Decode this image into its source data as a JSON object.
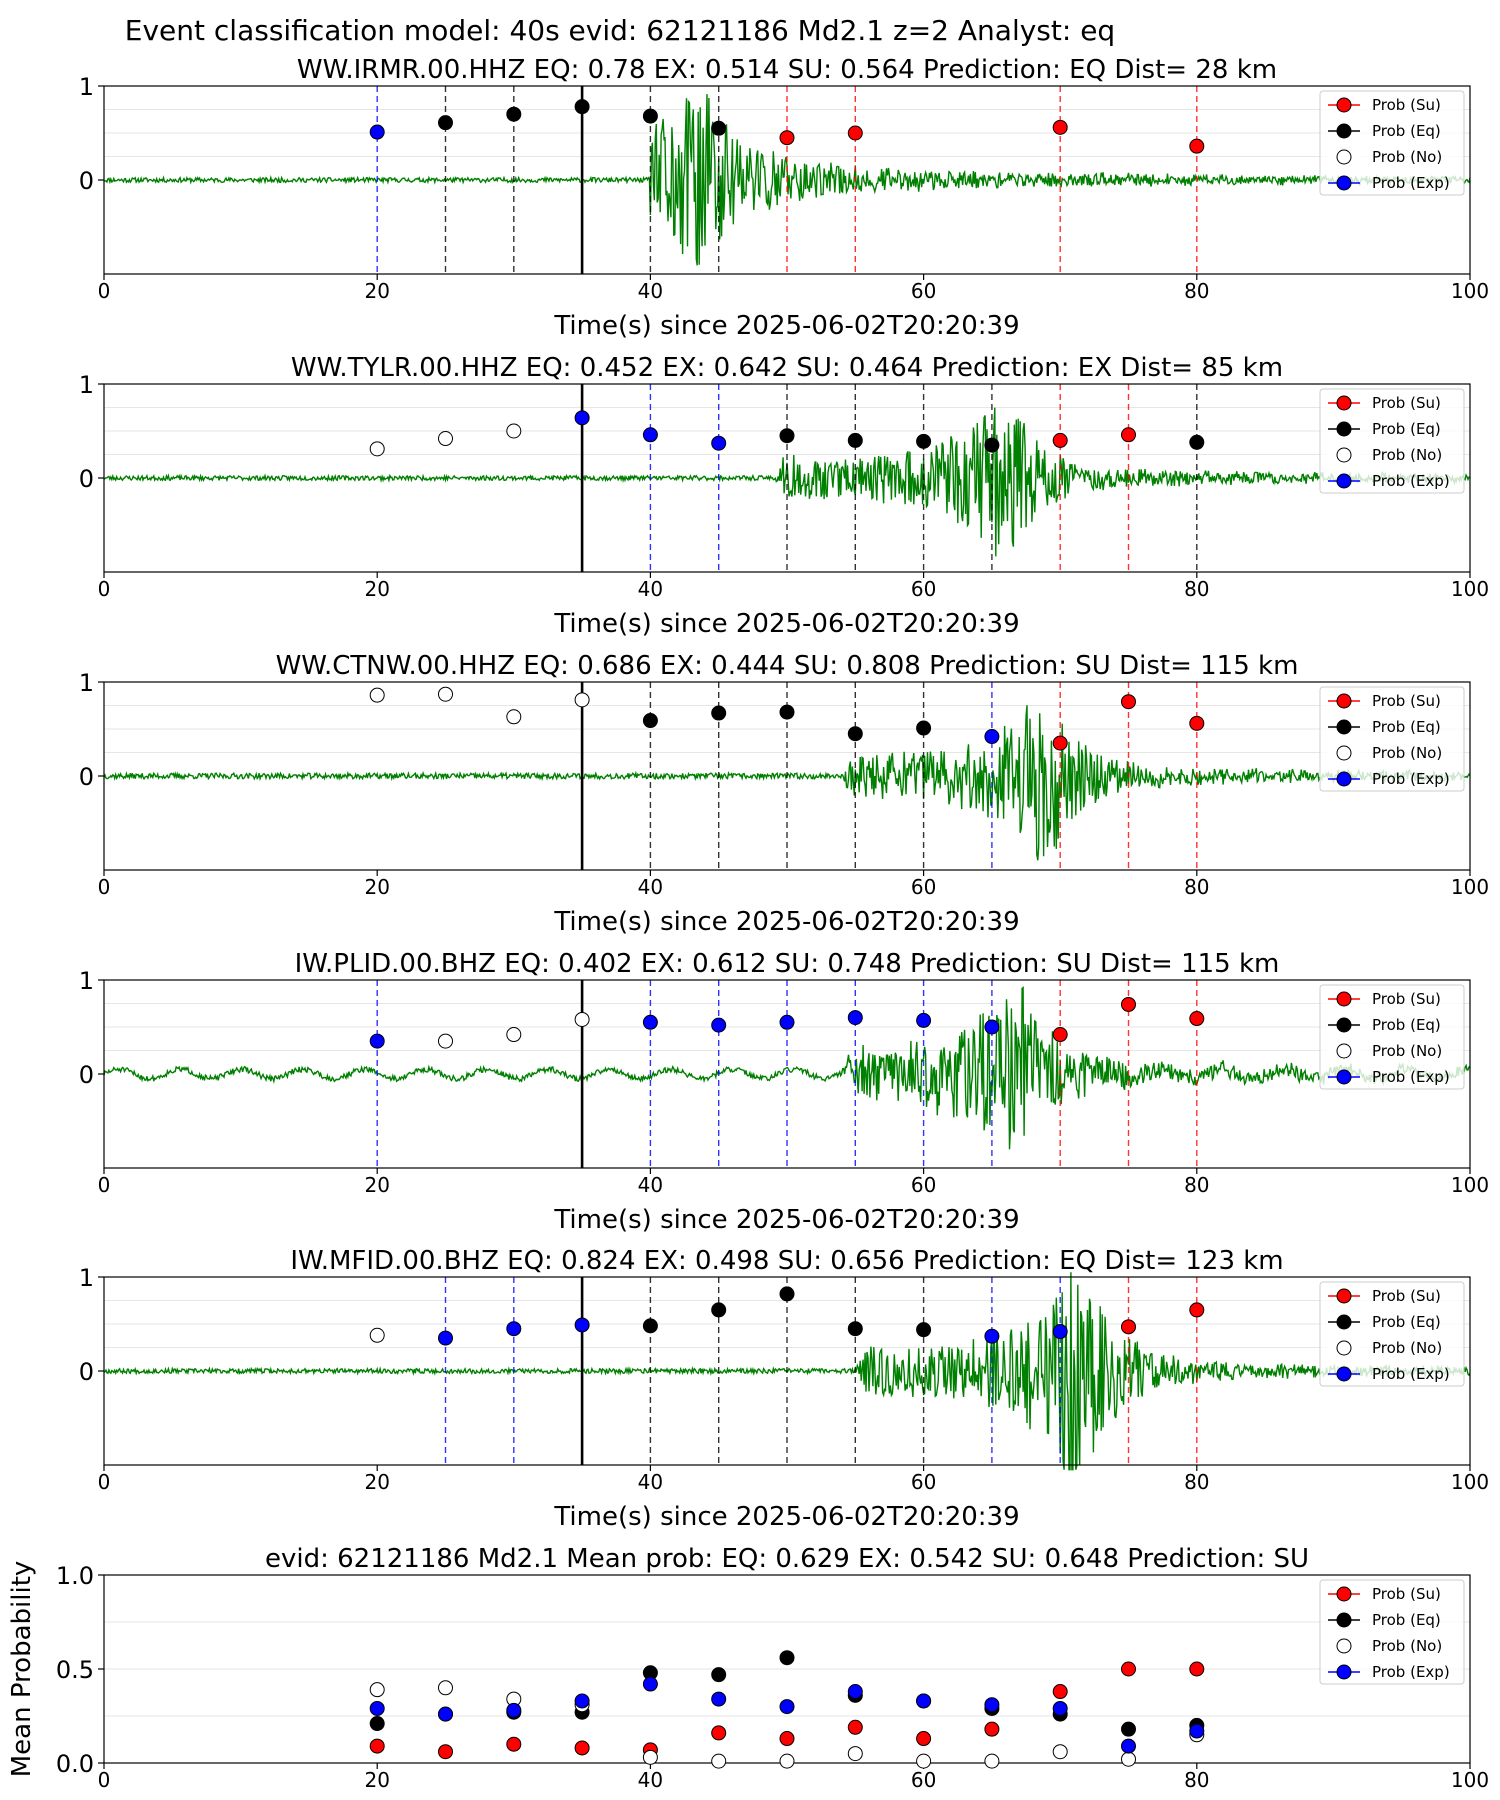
{
  "figure_title": "Event classification model: 40s evid: 62121186 Md2.1 z=2 Analyst: eq",
  "colors": {
    "su": "#ff0000",
    "eq": "#000000",
    "no": "#ffffff",
    "exp": "#0000ff",
    "waveform": "#008000",
    "vline_su": "#ff0000",
    "vline_eq": "#000000",
    "vline_exp": "#0000ff",
    "vline_current": "#000000"
  },
  "legend": [
    "Prob (Su)",
    "Prob (Eq)",
    "Prob (No)",
    "Prob (Exp)"
  ],
  "chart_data": [
    {
      "type": "scatter",
      "title": "WW.IRMR.00.HHZ   EQ: 0.78  EX: 0.514  SU: 0.564   Prediction: EQ    Dist= 28 km",
      "xlabel": "Time(s) since 2025-06-02T20:20:39",
      "ylabel": "",
      "xlim": [
        0,
        100
      ],
      "ylim": [
        -1,
        1
      ],
      "xticks": [
        "0",
        "20",
        "40",
        "60",
        "80",
        "100"
      ],
      "yticks": [
        "0",
        "1"
      ],
      "legend_position": "top-right",
      "current_time": 35,
      "waveform": {
        "onset": 40,
        "peak_time": 44,
        "peak_amp": 0.95,
        "decay": 0.09,
        "noise": 0.025,
        "seed": 11,
        "long_period": 0
      },
      "points": [
        {
          "x": 20,
          "y": 0.51,
          "cls": "exp"
        },
        {
          "x": 25,
          "y": 0.61,
          "cls": "eq"
        },
        {
          "x": 30,
          "y": 0.7,
          "cls": "eq"
        },
        {
          "x": 35,
          "y": 0.78,
          "cls": "eq"
        },
        {
          "x": 40,
          "y": 0.68,
          "cls": "eq"
        },
        {
          "x": 45,
          "y": 0.55,
          "cls": "eq"
        },
        {
          "x": 50,
          "y": 0.45,
          "cls": "su"
        },
        {
          "x": 55,
          "y": 0.5,
          "cls": "su"
        },
        {
          "x": 70,
          "y": 0.56,
          "cls": "su"
        },
        {
          "x": 80,
          "y": 0.36,
          "cls": "su"
        }
      ]
    },
    {
      "type": "scatter",
      "title": "WW.TYLR.00.HHZ   EQ: 0.452  EX: 0.642  SU: 0.464   Prediction: EX    Dist= 85 km",
      "xlabel": "Time(s) since 2025-06-02T20:20:39",
      "ylabel": "",
      "xlim": [
        0,
        100
      ],
      "ylim": [
        -1,
        1
      ],
      "xticks": [
        "0",
        "20",
        "40",
        "60",
        "80",
        "100"
      ],
      "yticks": [
        "0",
        "1"
      ],
      "legend_position": "top-right",
      "current_time": 35,
      "waveform": {
        "onset": 49,
        "peak_time": 66,
        "peak_amp": 0.95,
        "decay": 0.12,
        "noise": 0.025,
        "seed": 23,
        "long_period": 0
      },
      "points": [
        {
          "x": 20,
          "y": 0.31,
          "cls": "no"
        },
        {
          "x": 25,
          "y": 0.42,
          "cls": "no"
        },
        {
          "x": 30,
          "y": 0.5,
          "cls": "no"
        },
        {
          "x": 35,
          "y": 0.64,
          "cls": "exp"
        },
        {
          "x": 40,
          "y": 0.46,
          "cls": "exp"
        },
        {
          "x": 45,
          "y": 0.37,
          "cls": "exp"
        },
        {
          "x": 50,
          "y": 0.45,
          "cls": "eq"
        },
        {
          "x": 55,
          "y": 0.4,
          "cls": "eq"
        },
        {
          "x": 60,
          "y": 0.39,
          "cls": "eq"
        },
        {
          "x": 65,
          "y": 0.35,
          "cls": "eq"
        },
        {
          "x": 70,
          "y": 0.4,
          "cls": "su"
        },
        {
          "x": 75,
          "y": 0.46,
          "cls": "su"
        },
        {
          "x": 80,
          "y": 0.38,
          "cls": "eq"
        }
      ]
    },
    {
      "type": "scatter",
      "title": "WW.CTNW.00.HHZ   EQ: 0.686  EX: 0.444  SU: 0.808   Prediction: SU    Dist= 115 km",
      "xlabel": "Time(s) since 2025-06-02T20:20:39",
      "ylabel": "",
      "xlim": [
        0,
        100
      ],
      "ylim": [
        -1,
        1
      ],
      "xticks": [
        "0",
        "20",
        "40",
        "60",
        "80",
        "100"
      ],
      "yticks": [
        "0",
        "1"
      ],
      "legend_position": "top-right",
      "current_time": 35,
      "waveform": {
        "onset": 54,
        "peak_time": 69,
        "peak_amp": 0.95,
        "decay": 0.12,
        "noise": 0.03,
        "seed": 37,
        "long_period": 0
      },
      "points": [
        {
          "x": 20,
          "y": 0.86,
          "cls": "no"
        },
        {
          "x": 25,
          "y": 0.87,
          "cls": "no"
        },
        {
          "x": 30,
          "y": 0.63,
          "cls": "no"
        },
        {
          "x": 35,
          "y": 0.81,
          "cls": "no"
        },
        {
          "x": 40,
          "y": 0.59,
          "cls": "eq"
        },
        {
          "x": 45,
          "y": 0.67,
          "cls": "eq"
        },
        {
          "x": 50,
          "y": 0.68,
          "cls": "eq"
        },
        {
          "x": 55,
          "y": 0.45,
          "cls": "eq"
        },
        {
          "x": 60,
          "y": 0.51,
          "cls": "eq"
        },
        {
          "x": 65,
          "y": 0.42,
          "cls": "exp"
        },
        {
          "x": 70,
          "y": 0.35,
          "cls": "su"
        },
        {
          "x": 75,
          "y": 0.79,
          "cls": "su"
        },
        {
          "x": 80,
          "y": 0.56,
          "cls": "su"
        }
      ]
    },
    {
      "type": "scatter",
      "title": "IW.PLID.00.BHZ   EQ: 0.402  EX: 0.612  SU: 0.748   Prediction: SU    Dist= 115 km",
      "xlabel": "Time(s) since 2025-06-02T20:20:39",
      "ylabel": "",
      "xlim": [
        0,
        100
      ],
      "ylim": [
        -1,
        1
      ],
      "xticks": [
        "0",
        "20",
        "40",
        "60",
        "80",
        "100"
      ],
      "yticks": [
        "0",
        "1"
      ],
      "legend_position": "top-right",
      "current_time": 35,
      "waveform": {
        "onset": 54,
        "peak_time": 67,
        "peak_amp": 0.95,
        "decay": 0.11,
        "noise": 0.03,
        "seed": 51,
        "long_period": 0.05
      },
      "points": [
        {
          "x": 20,
          "y": 0.35,
          "cls": "exp"
        },
        {
          "x": 25,
          "y": 0.35,
          "cls": "no"
        },
        {
          "x": 30,
          "y": 0.42,
          "cls": "no"
        },
        {
          "x": 35,
          "y": 0.58,
          "cls": "no"
        },
        {
          "x": 40,
          "y": 0.55,
          "cls": "exp"
        },
        {
          "x": 45,
          "y": 0.52,
          "cls": "exp"
        },
        {
          "x": 50,
          "y": 0.55,
          "cls": "exp"
        },
        {
          "x": 55,
          "y": 0.6,
          "cls": "exp"
        },
        {
          "x": 60,
          "y": 0.57,
          "cls": "exp"
        },
        {
          "x": 65,
          "y": 0.5,
          "cls": "exp"
        },
        {
          "x": 70,
          "y": 0.42,
          "cls": "su"
        },
        {
          "x": 75,
          "y": 0.74,
          "cls": "su"
        },
        {
          "x": 80,
          "y": 0.59,
          "cls": "su"
        }
      ]
    },
    {
      "type": "scatter",
      "title": "IW.MFID.00.BHZ   EQ: 0.824  EX: 0.498  SU: 0.656   Prediction: EQ    Dist= 123 km",
      "xlabel": "Time(s) since 2025-06-02T20:20:39",
      "ylabel": "",
      "xlim": [
        0,
        100
      ],
      "ylim": [
        -1,
        1
      ],
      "xticks": [
        "0",
        "20",
        "40",
        "60",
        "80",
        "100"
      ],
      "yticks": [
        "0",
        "1"
      ],
      "legend_position": "top-right",
      "current_time": 35,
      "waveform": {
        "onset": 55,
        "peak_time": 71,
        "peak_amp": 0.95,
        "decay": 0.1,
        "noise": 0.025,
        "seed": 67,
        "long_period": 0,
        "second_onset": 70
      },
      "points": [
        {
          "x": 20,
          "y": 0.38,
          "cls": "no"
        },
        {
          "x": 25,
          "y": 0.35,
          "cls": "exp"
        },
        {
          "x": 30,
          "y": 0.45,
          "cls": "exp"
        },
        {
          "x": 35,
          "y": 0.49,
          "cls": "exp"
        },
        {
          "x": 40,
          "y": 0.48,
          "cls": "eq"
        },
        {
          "x": 45,
          "y": 0.65,
          "cls": "eq"
        },
        {
          "x": 50,
          "y": 0.82,
          "cls": "eq"
        },
        {
          "x": 55,
          "y": 0.45,
          "cls": "eq"
        },
        {
          "x": 60,
          "y": 0.44,
          "cls": "eq"
        },
        {
          "x": 65,
          "y": 0.37,
          "cls": "exp"
        },
        {
          "x": 70,
          "y": 0.42,
          "cls": "exp"
        },
        {
          "x": 75,
          "y": 0.47,
          "cls": "su"
        },
        {
          "x": 80,
          "y": 0.65,
          "cls": "su"
        }
      ]
    },
    {
      "type": "scatter",
      "title": "evid: 62121186  Md2.1   Mean prob:   EQ: 0.629  EX: 0.542  SU: 0.648   Prediction: SU",
      "xlabel": "",
      "ylabel": "Mean Probability",
      "xlim": [
        0,
        100
      ],
      "ylim": [
        0,
        1
      ],
      "xticks": [
        "0",
        "20",
        "40",
        "60",
        "80",
        "100"
      ],
      "yticks": [
        "0.0",
        "0.5",
        "1.0"
      ],
      "legend_position": "top-right",
      "x": [
        20,
        25,
        30,
        35,
        40,
        45,
        50,
        55,
        60,
        65,
        70,
        75,
        80
      ],
      "series": [
        {
          "name": "Prob (Su)",
          "cls": "su",
          "values": [
            0.09,
            0.06,
            0.1,
            0.08,
            0.07,
            0.16,
            0.13,
            0.19,
            0.13,
            0.18,
            0.38,
            0.5,
            0.5
          ]
        },
        {
          "name": "Prob (Eq)",
          "cls": "eq",
          "values": [
            0.21,
            0.26,
            0.27,
            0.27,
            0.48,
            0.47,
            0.56,
            0.36,
            0.33,
            0.29,
            0.26,
            0.18,
            0.2
          ]
        },
        {
          "name": "Prob (No)",
          "cls": "no",
          "values": [
            0.39,
            0.4,
            0.34,
            0.31,
            0.03,
            0.01,
            0.01,
            0.05,
            0.01,
            0.01,
            0.06,
            0.02,
            0.15
          ]
        },
        {
          "name": "Prob (Exp)",
          "cls": "exp",
          "values": [
            0.29,
            0.26,
            0.28,
            0.33,
            0.42,
            0.34,
            0.3,
            0.38,
            0.33,
            0.31,
            0.29,
            0.09,
            0.17
          ]
        }
      ]
    }
  ]
}
